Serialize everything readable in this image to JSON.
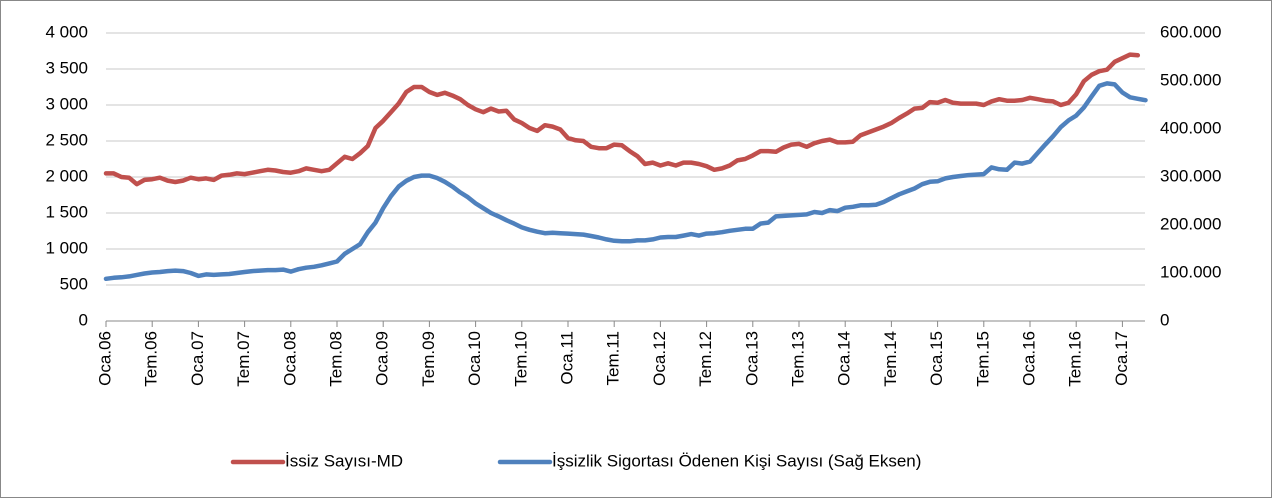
{
  "chart_data": {
    "type": "line",
    "categories": [
      "Oca.06",
      null,
      null,
      null,
      null,
      null,
      "Tem.06",
      null,
      null,
      null,
      null,
      null,
      "Oca.07",
      null,
      null,
      null,
      null,
      null,
      "Tem.07",
      null,
      null,
      null,
      null,
      null,
      "Oca.08",
      null,
      null,
      null,
      null,
      null,
      "Tem.08",
      null,
      null,
      null,
      null,
      null,
      "Oca.09",
      null,
      null,
      null,
      null,
      null,
      "Tem.09",
      null,
      null,
      null,
      null,
      null,
      "Oca.10",
      null,
      null,
      null,
      null,
      null,
      "Tem.10",
      null,
      null,
      null,
      null,
      null,
      "Oca.11",
      null,
      null,
      null,
      null,
      null,
      "Tem.11",
      null,
      null,
      null,
      null,
      null,
      "Oca.12",
      null,
      null,
      null,
      null,
      null,
      "Tem.12",
      null,
      null,
      null,
      null,
      null,
      "Oca.13",
      null,
      null,
      null,
      null,
      null,
      "Tem.13",
      null,
      null,
      null,
      null,
      null,
      "Oca.14",
      null,
      null,
      null,
      null,
      null,
      "Tem.14",
      null,
      null,
      null,
      null,
      null,
      "Oca.15",
      null,
      null,
      null,
      null,
      null,
      "Tem.15",
      null,
      null,
      null,
      null,
      null,
      "Oca.16",
      null,
      null,
      null,
      null,
      null,
      "Tem.16",
      null,
      null,
      null,
      null,
      null,
      "Oca.17",
      null,
      null,
      null
    ],
    "series": [
      {
        "name": "İssiz Sayısı-MD",
        "color": "#c0504d",
        "values": [
          2050,
          2050,
          2000,
          1990,
          1900,
          1960,
          1970,
          1990,
          1950,
          1930,
          1950,
          1990,
          1970,
          1980,
          1960,
          2020,
          2030,
          2050,
          2040,
          2060,
          2080,
          2100,
          2090,
          2070,
          2060,
          2080,
          2120,
          2100,
          2080,
          2100,
          2190,
          2280,
          2250,
          2330,
          2430,
          2680,
          2780,
          2900,
          3020,
          3180,
          3250,
          3250,
          3180,
          3140,
          3170,
          3130,
          3080,
          3000,
          2940,
          2900,
          2950,
          2910,
          2920,
          2800,
          2750,
          2680,
          2640,
          2720,
          2700,
          2660,
          2540,
          2510,
          2500,
          2420,
          2400,
          2400,
          2450,
          2440,
          2360,
          2290,
          2180,
          2200,
          2160,
          2190,
          2160,
          2200,
          2200,
          2180,
          2150,
          2100,
          2120,
          2160,
          2230,
          2250,
          2300,
          2360,
          2360,
          2350,
          2410,
          2450,
          2460,
          2420,
          2470,
          2500,
          2520,
          2480,
          2480,
          2490,
          2580,
          2620,
          2660,
          2700,
          2750,
          2820,
          2880,
          2950,
          2960,
          3040,
          3030,
          3070,
          3030,
          3020,
          3020,
          3020,
          3000,
          3050,
          3080,
          3060,
          3060,
          3070,
          3100,
          3080,
          3060,
          3050,
          3000,
          3030,
          3150,
          3330,
          3420,
          3470,
          3490,
          3600,
          3650,
          3700,
          3690,
          null
        ]
      },
      {
        "name": "İşsizlik Sigortası Ödenen Kişi Sayısı (Sağ Eksen)",
        "color": "#4f81bd",
        "axis": "y2",
        "values": [
          88000,
          90000,
          91000,
          93000,
          96000,
          99000,
          101000,
          102000,
          104000,
          105000,
          104000,
          100000,
          94000,
          97000,
          96000,
          97000,
          98000,
          100000,
          102000,
          104000,
          105000,
          106000,
          106000,
          107000,
          103000,
          108000,
          111000,
          113000,
          116000,
          120000,
          124000,
          140000,
          150000,
          160000,
          185000,
          205000,
          235000,
          260000,
          280000,
          292000,
          300000,
          303000,
          303000,
          298000,
          290000,
          280000,
          268000,
          258000,
          245000,
          235000,
          225000,
          218000,
          210000,
          203000,
          195000,
          190000,
          186000,
          183000,
          184000,
          183000,
          182000,
          181000,
          180000,
          177000,
          174000,
          170000,
          167000,
          166000,
          166000,
          168000,
          168000,
          170000,
          174000,
          175000,
          175000,
          178000,
          181000,
          178000,
          182000,
          183000,
          185000,
          188000,
          190000,
          192000,
          192000,
          203000,
          205000,
          218000,
          219000,
          220000,
          221000,
          222000,
          227000,
          225000,
          231000,
          229000,
          236000,
          238000,
          241000,
          241000,
          242000,
          248000,
          256000,
          264000,
          270000,
          276000,
          285000,
          290000,
          291000,
          297000,
          300000,
          302000,
          304000,
          305000,
          306000,
          320000,
          316000,
          315000,
          330000,
          328000,
          332000,
          350000,
          368000,
          385000,
          404000,
          418000,
          428000,
          445000,
          468000,
          490000,
          495000,
          493000,
          476000,
          466000,
          463000,
          460000
        ]
      }
    ],
    "ylim": [
      0,
      4000
    ],
    "yticks": [
      0,
      500,
      {
        "value": 1000,
        "label": "1 000"
      },
      {
        "value": 1500,
        "label": "1 500"
      },
      {
        "value": 2000,
        "label": "2 000"
      },
      {
        "value": 2500,
        "label": "2 500"
      },
      {
        "value": 3000,
        "label": "3 000"
      },
      {
        "value": 3500,
        "label": "3 500"
      },
      {
        "value": 4000,
        "label": "4 000"
      }
    ],
    "y2lim": [
      0,
      600000
    ],
    "y2ticks": [
      0,
      {
        "value": 100000,
        "label": "100.000"
      },
      {
        "value": 200000,
        "label": "200.000"
      },
      {
        "value": 300000,
        "label": "300.000"
      },
      {
        "value": 400000,
        "label": "400.000"
      },
      {
        "value": 500000,
        "label": "500.000"
      },
      {
        "value": 600000,
        "label": "600.000"
      }
    ],
    "grid": true,
    "legend": "bottom"
  }
}
